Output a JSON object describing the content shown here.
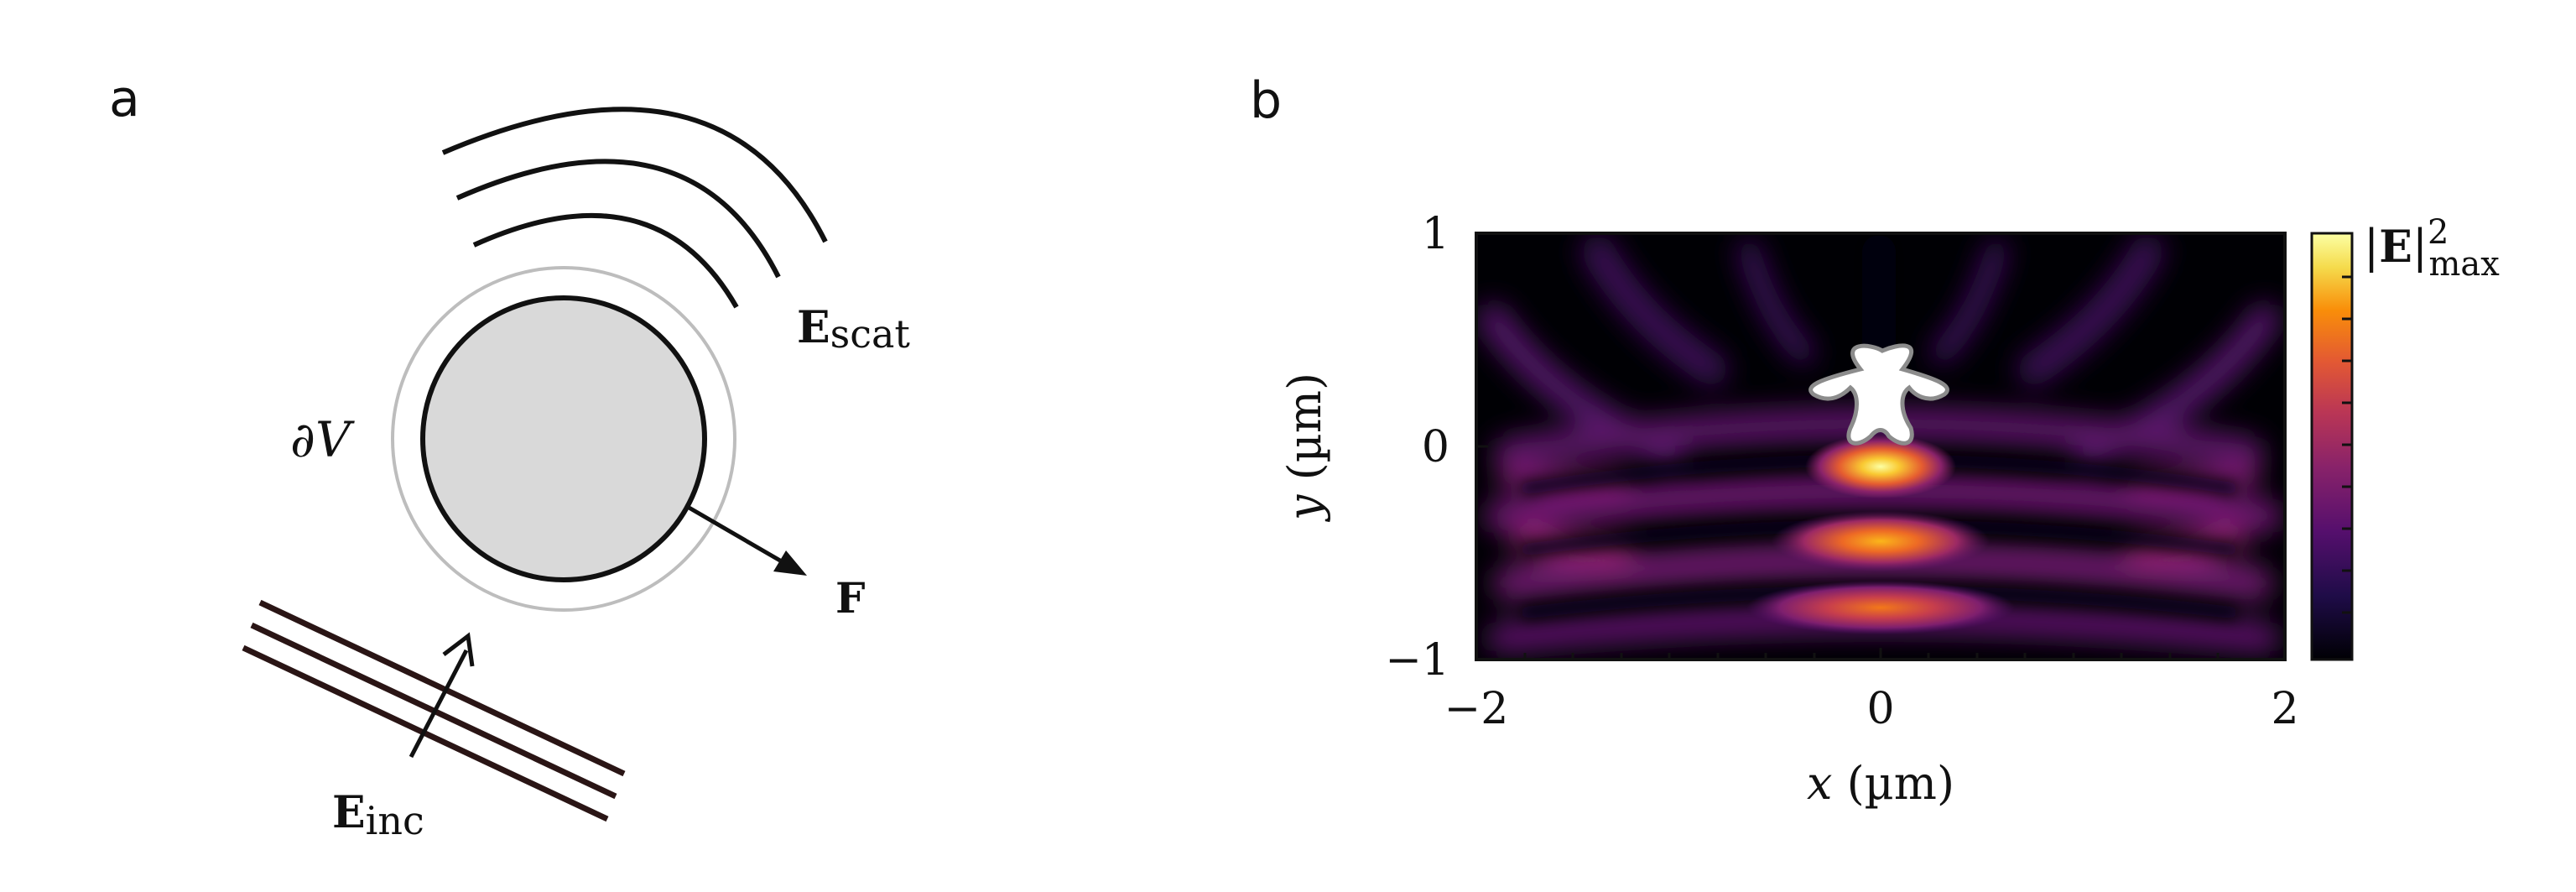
{
  "panel_a": {
    "label": "a",
    "boundary_label": "∂V",
    "force_label": "F",
    "scat_field": {
      "main": "E",
      "sub": "scat"
    },
    "inc_field": {
      "main": "E",
      "sub": "inc"
    }
  },
  "panel_b": {
    "label": "b",
    "x_axis": {
      "var": "x",
      "unit": " (µm)",
      "ticks": [
        "−2",
        "0",
        "2"
      ]
    },
    "y_axis": {
      "var": "y",
      "unit": " (µm)",
      "ticks": [
        "1",
        "0",
        "−1"
      ]
    },
    "colorbar": {
      "bars": "|",
      "bold": "E",
      "bars2": "|",
      "sup": "2",
      "sub": "max"
    }
  },
  "chart_data": {
    "type": "heatmap",
    "title": "",
    "xlabel": "x (µm)",
    "ylabel": "y (µm)",
    "xlim": [
      -2,
      2
    ],
    "ylim": [
      -1,
      1
    ],
    "x_ticks": [
      -2,
      0,
      2
    ],
    "y_ticks": [
      -1,
      0,
      1
    ],
    "colormap": "inferno",
    "colorbar_label": "|E|^2_max",
    "hotspots": [
      {
        "x": 0.0,
        "y": -0.12,
        "intensity": 0.95
      },
      {
        "x": 0.0,
        "y": -0.47,
        "intensity": 0.8
      },
      {
        "x": 0.0,
        "y": -0.78,
        "intensity": 0.65
      }
    ],
    "scatterer_center": {
      "x": 0.0,
      "y": 0.22
    },
    "colors": {
      "background": "#000004",
      "mid": "#7a1f6d",
      "peak": "#fcffa4"
    }
  }
}
